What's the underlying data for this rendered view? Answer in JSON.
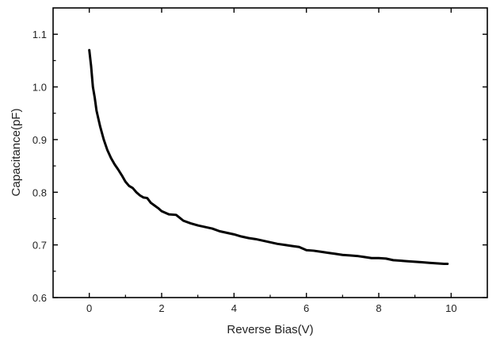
{
  "chart_data": {
    "type": "line",
    "title": "",
    "xlabel": "Reverse Bias(V)",
    "ylabel": "Capacitance(pF)",
    "xlim": [
      -1,
      11
    ],
    "ylim": [
      0.6,
      1.15
    ],
    "xticks": [
      0,
      2,
      4,
      6,
      8,
      10
    ],
    "yticks": [
      0.6,
      0.7,
      0.8,
      0.9,
      1.0,
      1.1
    ],
    "xtick_labels": [
      "0",
      "2",
      "4",
      "6",
      "8",
      "10"
    ],
    "ytick_labels": [
      "0.6",
      "0.7",
      "0.8",
      "0.9",
      "1.0",
      "1.1"
    ],
    "grid": false,
    "legend": "none",
    "line_color": "#000000",
    "series": [
      {
        "x": [
          0,
          0.05,
          0.1,
          0.15,
          0.2,
          0.3,
          0.4,
          0.5,
          0.6,
          0.7,
          0.8,
          0.9,
          1.0,
          1.1,
          1.2,
          1.3,
          1.4,
          1.5,
          1.6,
          1.7,
          1.8,
          1.9,
          2.0,
          2.2,
          2.4,
          2.6,
          2.8,
          3.0,
          3.2,
          3.4,
          3.6,
          3.8,
          4.0,
          4.2,
          4.4,
          4.6,
          4.8,
          5.0,
          5.2,
          5.4,
          5.6,
          5.8,
          6.0,
          6.2,
          6.4,
          6.6,
          6.8,
          7.0,
          7.2,
          7.4,
          7.6,
          7.8,
          8.0,
          8.2,
          8.4,
          8.6,
          8.8,
          9.0,
          9.2,
          9.4,
          9.6,
          9.8,
          9.9
        ],
        "y": [
          1.07,
          1.04,
          1.0,
          0.98,
          0.955,
          0.925,
          0.9,
          0.88,
          0.865,
          0.853,
          0.843,
          0.832,
          0.82,
          0.812,
          0.808,
          0.8,
          0.794,
          0.79,
          0.789,
          0.78,
          0.775,
          0.77,
          0.764,
          0.758,
          0.757,
          0.746,
          0.741,
          0.737,
          0.734,
          0.731,
          0.726,
          0.723,
          0.72,
          0.716,
          0.713,
          0.711,
          0.708,
          0.705,
          0.702,
          0.7,
          0.698,
          0.696,
          0.69,
          0.689,
          0.687,
          0.685,
          0.683,
          0.681,
          0.68,
          0.679,
          0.677,
          0.675,
          0.675,
          0.674,
          0.671,
          0.67,
          0.669,
          0.668,
          0.667,
          0.666,
          0.665,
          0.664,
          0.664
        ]
      }
    ]
  }
}
